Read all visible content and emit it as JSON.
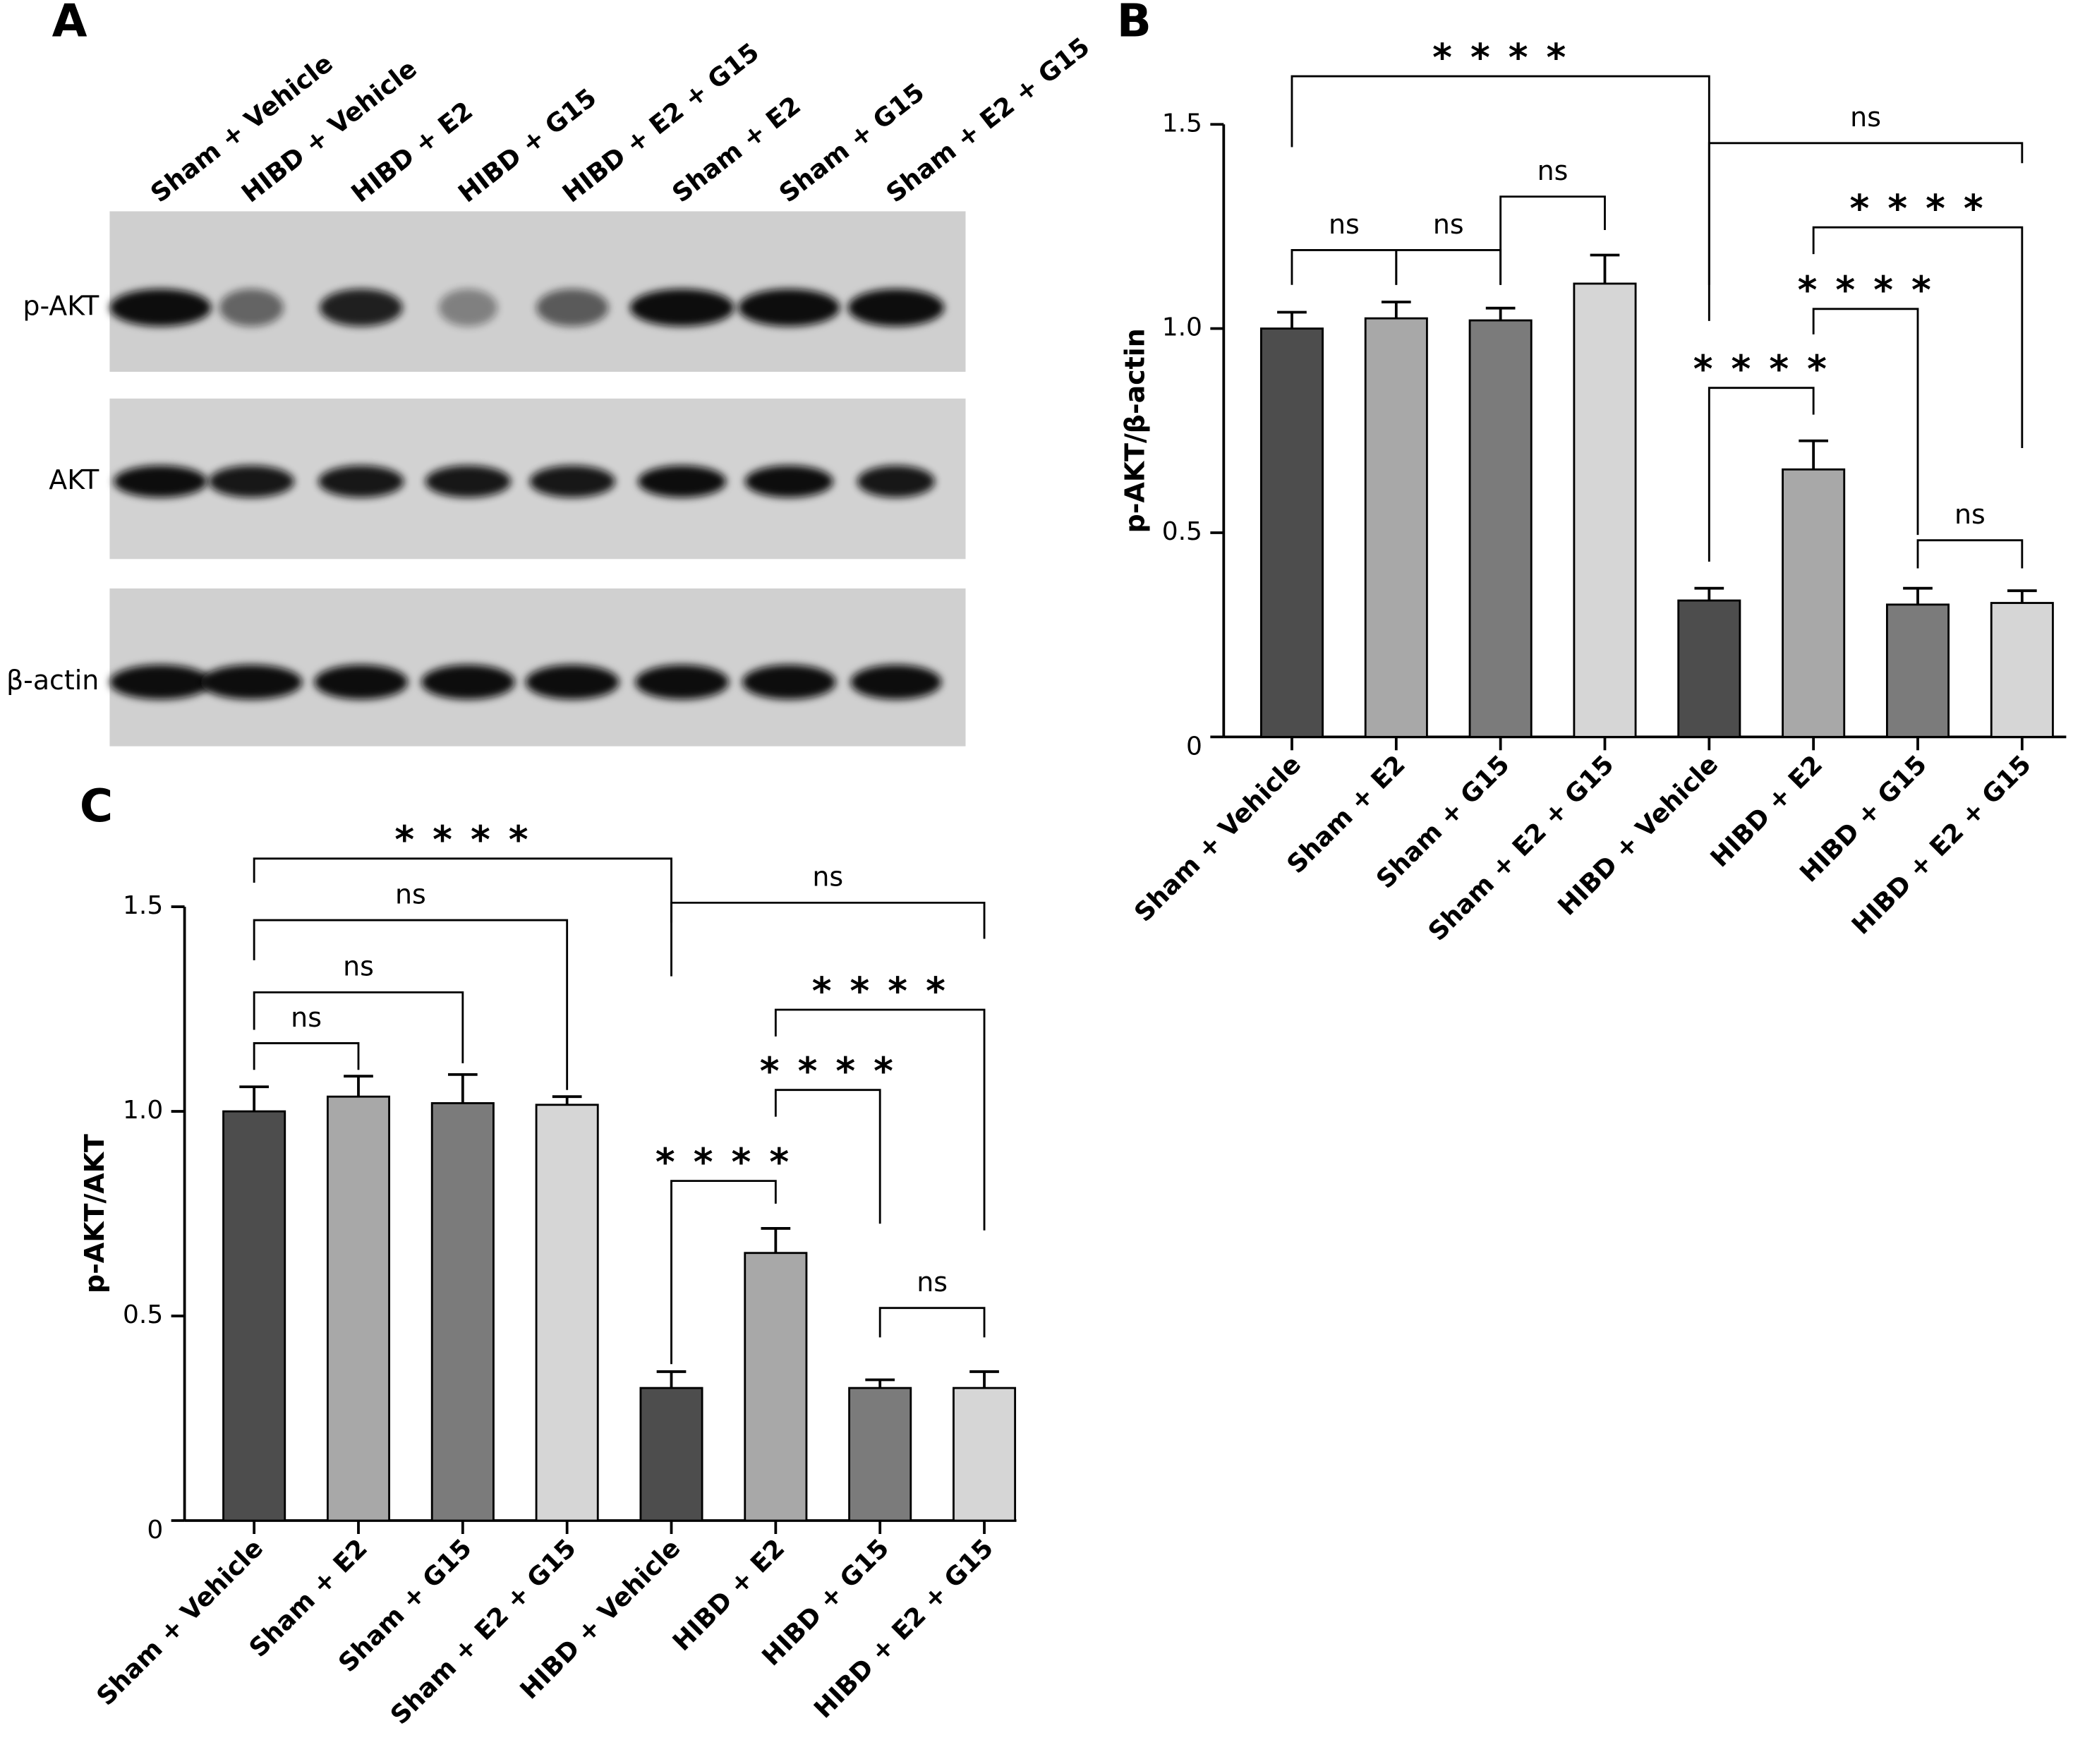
{
  "blot": {
    "panel": "A",
    "lanes": [
      "Sham + Vehicle",
      "HIBD + Vehicle",
      "HIBD + E2",
      "HIBD + G15",
      "HIBD + E2 + G15",
      "Sham + E2",
      "Sham + G15",
      "Sham + E2 + G15"
    ],
    "rows": [
      "p-AKT",
      "AKT",
      "β-actin"
    ]
  },
  "chart_data": [
    {
      "type": "bar",
      "panel": "B",
      "y_label": "p-AKT/β-actin",
      "categories": [
        "Sham + Vehicle",
        "Sham + E2",
        "Sham + G15",
        "Sham + E2 + G15",
        "HIBD + Vehicle",
        "HIBD + E2",
        "HIBD + G15",
        "HIBD + E2 + G15"
      ],
      "values": [
        1.0,
        1.025,
        1.02,
        1.11,
        0.334,
        0.655,
        0.324,
        0.328
      ],
      "errors": [
        0.04,
        0.04,
        0.03,
        0.07,
        0.03,
        0.07,
        0.04,
        0.03
      ],
      "colors": [
        "#4d4d4d",
        "#a8a8a8",
        "#7b7b7b",
        "#d6d6d6",
        "#4d4d4d",
        "#a8a8a8",
        "#7b7b7b",
        "#d6d6d6"
      ],
      "ylim": [
        0,
        1.5
      ],
      "yticks": [
        0,
        0.5,
        {
          "value": 1,
          "label": "1.0"
        },
        1.5
      ],
      "annotations": [
        {
          "text": "* * * *",
          "from": "Sham + Vehicle",
          "to": "HIBD + Vehicle"
        },
        {
          "text": "ns",
          "from": "Sham + Vehicle",
          "to": "Sham + E2"
        },
        {
          "text": "ns",
          "from": "Sham + E2",
          "to": "Sham + G15"
        },
        {
          "text": "ns",
          "from": "Sham + G15",
          "to": "Sham + E2 + G15"
        },
        {
          "text": "ns",
          "from": "HIBD + Vehicle",
          "to": "HIBD + E2 + G15"
        },
        {
          "text": "* * * *",
          "from": "HIBD + E2",
          "to": "HIBD + E2 + G15"
        },
        {
          "text": "* * * *",
          "from": "HIBD + E2",
          "to": "HIBD + G15"
        },
        {
          "text": "* * * *",
          "from": "HIBD + Vehicle",
          "to": "HIBD + E2"
        },
        {
          "text": "ns",
          "from": "HIBD + G15",
          "to": "HIBD + E2 + G15"
        }
      ]
    },
    {
      "type": "bar",
      "panel": "C",
      "y_label": "p-AKT/AKT",
      "categories": [
        "Sham + Vehicle",
        "Sham + E2",
        "Sham + G15",
        "Sham + E2 + G15",
        "HIBD + Vehicle",
        "HIBD + E2",
        "HIBD + G15",
        "HIBD + E2 + G15"
      ],
      "values": [
        1.0,
        1.036,
        1.02,
        1.016,
        0.324,
        0.654,
        0.324,
        0.324
      ],
      "errors": [
        0.06,
        0.05,
        0.07,
        0.02,
        0.04,
        0.06,
        0.02,
        0.04
      ],
      "colors": [
        "#4d4d4d",
        "#a8a8a8",
        "#7b7b7b",
        "#d6d6d6",
        "#4d4d4d",
        "#a8a8a8",
        "#7b7b7b",
        "#d6d6d6"
      ],
      "ylim": [
        0,
        1.5
      ],
      "yticks": [
        0,
        0.5,
        {
          "value": 1,
          "label": "1.0"
        },
        1.5
      ],
      "annotations": [
        {
          "text": "* * * *",
          "from": "Sham + Vehicle",
          "to": "HIBD + Vehicle"
        },
        {
          "text": "ns",
          "from": "Sham + Vehicle",
          "to": "Sham + E2 + G15"
        },
        {
          "text": "ns",
          "from": "Sham + Vehicle",
          "to": "Sham + G15"
        },
        {
          "text": "ns",
          "from": "Sham + Vehicle",
          "to": "Sham + E2"
        },
        {
          "text": "ns",
          "from": "HIBD + Vehicle",
          "to": "HIBD + E2 + G15"
        },
        {
          "text": "* * * *",
          "from": "HIBD + E2",
          "to": "HIBD + E2 + G15"
        },
        {
          "text": "* * * *",
          "from": "HIBD + E2",
          "to": "HIBD + G15"
        },
        {
          "text": "* * * *",
          "from": "HIBD + Vehicle",
          "to": "HIBD + E2"
        },
        {
          "text": "ns",
          "from": "HIBD + G15",
          "to": "HIBD + E2 + G15"
        }
      ]
    }
  ]
}
